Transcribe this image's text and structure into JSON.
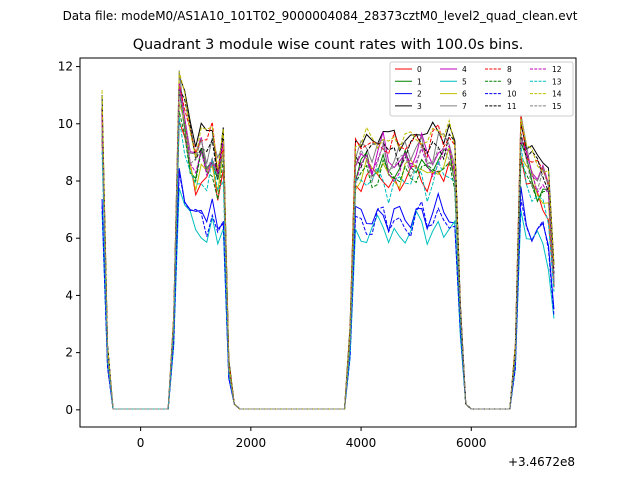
{
  "figure": {
    "suptitle": "Data file: modeM0/AS1A10_101T02_9000004084_28373cztM0_level2_quad_clean.evt",
    "title": "Quadrant 3 module wise count rates with 100.0s bins.",
    "offset_text": "+3.4672e8"
  },
  "chart_data": {
    "type": "line",
    "title": "Quadrant 3 module wise count rates with 100.0s bins.",
    "xlabel": "",
    "ylabel": "",
    "x_offset": 346720000,
    "xlim": [
      -1100,
      7900
    ],
    "ylim": [
      -0.6,
      12.3
    ],
    "xticks": [
      0,
      2000,
      4000,
      6000
    ],
    "xtick_labels": [
      "0",
      "2000",
      "4000",
      "6000"
    ],
    "yticks": [
      0,
      2,
      4,
      6,
      8,
      10,
      12
    ],
    "ytick_labels": [
      "0",
      "2",
      "4",
      "6",
      "8",
      "10",
      "12"
    ],
    "legend_position": "upper right",
    "segments": [
      {
        "x_start": -700,
        "x_end": -500,
        "base": [
          10.0,
          2.0
        ]
      },
      {
        "x_start": 600,
        "x_end": 1700,
        "base": [
          3.0,
          11.0,
          10.0,
          9.0,
          8.5,
          9.0,
          8.5,
          9.0,
          8.0,
          9.0,
          1.5,
          0.2
        ]
      },
      {
        "x_start": 3800,
        "x_end": 5900,
        "base": [
          2.5,
          8.5,
          8.6,
          8.7,
          8.5,
          8.8,
          9.0,
          8.4,
          8.6,
          8.5,
          8.7,
          8.6,
          8.9,
          9.0,
          8.5,
          8.7,
          9.0,
          8.8,
          9.0,
          8.5,
          3.5,
          0.2
        ]
      },
      {
        "x_start": 6800,
        "x_end": 7500,
        "base": [
          2.0,
          9.5,
          8.6,
          8.2,
          8.0,
          8.0,
          7.5,
          4.5
        ]
      }
    ],
    "series": [
      {
        "name": "0",
        "color": "#ff0000",
        "dash": "solid",
        "scale": 0.93
      },
      {
        "name": "1",
        "color": "#008000",
        "dash": "solid",
        "scale": 0.98
      },
      {
        "name": "2",
        "color": "#0000ff",
        "dash": "solid",
        "scale": 0.78
      },
      {
        "name": "3",
        "color": "#000000",
        "dash": "solid",
        "scale": 1.1
      },
      {
        "name": "4",
        "color": "#bf00bf",
        "dash": "solid",
        "scale": 1.02
      },
      {
        "name": "5",
        "color": "#00bfbf",
        "dash": "solid",
        "scale": 0.72
      },
      {
        "name": "6",
        "color": "#bfbf00",
        "dash": "solid",
        "scale": 0.96
      },
      {
        "name": "7",
        "color": "#808080",
        "dash": "solid",
        "scale": 1.04
      },
      {
        "name": "8",
        "color": "#ff0000",
        "dash": "dashed",
        "scale": 1.07
      },
      {
        "name": "9",
        "color": "#008000",
        "dash": "dashed",
        "scale": 0.95
      },
      {
        "name": "10",
        "color": "#0000ff",
        "dash": "dashed",
        "scale": 0.76
      },
      {
        "name": "11",
        "color": "#000000",
        "dash": "dashed",
        "scale": 1.05
      },
      {
        "name": "12",
        "color": "#bf00bf",
        "dash": "dashed",
        "scale": 0.99
      },
      {
        "name": "13",
        "color": "#00bfbf",
        "dash": "dashed",
        "scale": 0.92
      },
      {
        "name": "14",
        "color": "#bfbf00",
        "dash": "dashed",
        "scale": 1.09
      },
      {
        "name": "15",
        "color": "#808080",
        "dash": "dashed",
        "scale": 1.0
      }
    ]
  }
}
